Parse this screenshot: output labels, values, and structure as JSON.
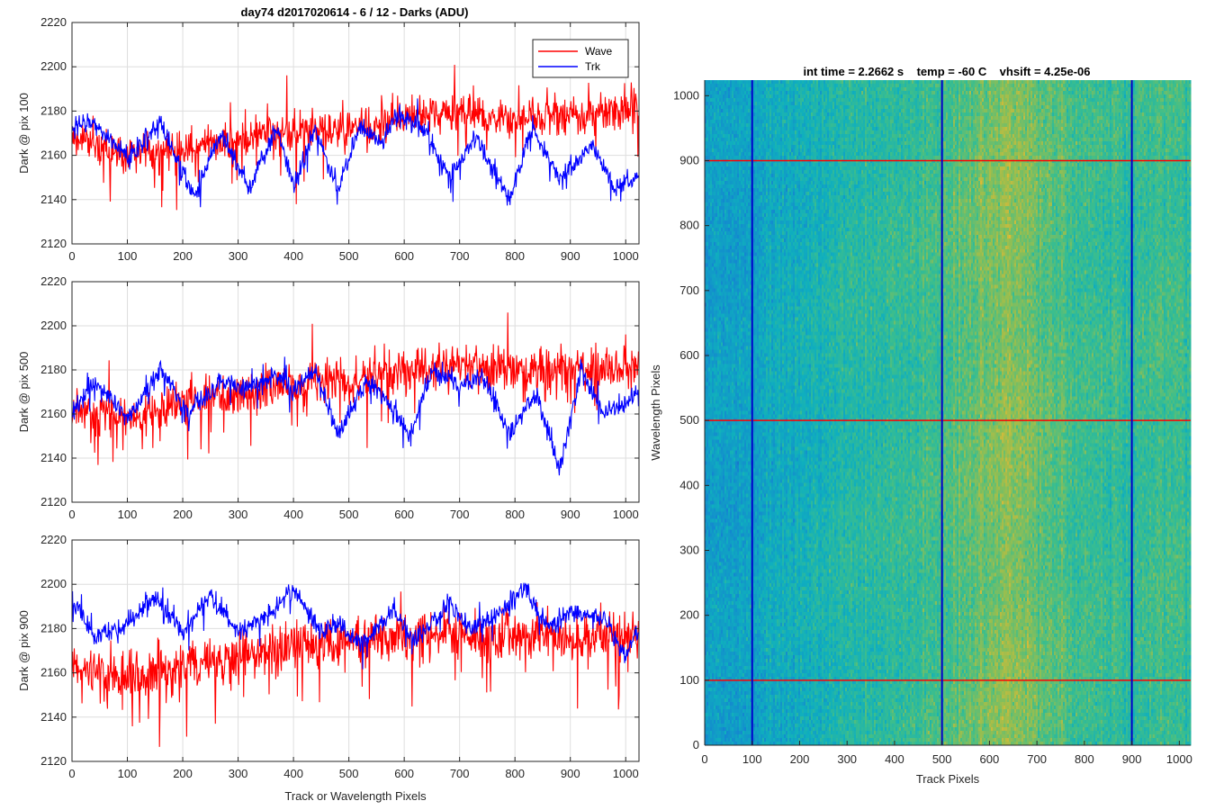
{
  "figure_title": "day74 d2017020614 - 6 / 12 - Darks (ADU)",
  "chart_data": [
    {
      "type": "line",
      "ylabel": "Dark @ pix 100",
      "xlim": [
        0,
        1024
      ],
      "ylim": [
        2120,
        2220
      ],
      "xticks": [
        0,
        100,
        200,
        300,
        400,
        500,
        600,
        700,
        800,
        900,
        1000
      ],
      "yticks": [
        2120,
        2140,
        2160,
        2180,
        2200,
        2220
      ],
      "grid": true,
      "legend": {
        "position": "top-right",
        "entries": [
          "Wave",
          "Trk"
        ]
      },
      "series": [
        {
          "name": "Wave",
          "color": "#ff0000",
          "x": [
            0,
            100,
            200,
            300,
            400,
            500,
            600,
            700,
            800,
            900,
            1000,
            1023
          ],
          "values": [
            2168,
            2160,
            2163,
            2167,
            2170,
            2172,
            2178,
            2180,
            2177,
            2178,
            2180,
            2182
          ],
          "noise": 10
        },
        {
          "name": "Trk",
          "color": "#0000ff",
          "x": [
            0,
            40,
            100,
            160,
            220,
            270,
            320,
            370,
            400,
            440,
            480,
            520,
            560,
            590,
            640,
            680,
            730,
            790,
            830,
            880,
            940,
            980,
            1023
          ],
          "values": [
            2173,
            2175,
            2158,
            2175,
            2142,
            2170,
            2145,
            2172,
            2145,
            2172,
            2145,
            2173,
            2165,
            2180,
            2170,
            2150,
            2168,
            2140,
            2172,
            2150,
            2165,
            2145,
            2150
          ],
          "noise": 5
        }
      ]
    },
    {
      "type": "line",
      "ylabel": "Dark @ pix 500",
      "xlim": [
        0,
        1024
      ],
      "ylim": [
        2120,
        2220
      ],
      "xticks": [
        0,
        100,
        200,
        300,
        400,
        500,
        600,
        700,
        800,
        900,
        1000
      ],
      "yticks": [
        2120,
        2140,
        2160,
        2180,
        2200,
        2220
      ],
      "grid": true,
      "series": [
        {
          "name": "Wave",
          "color": "#ff0000",
          "x": [
            0,
            100,
            200,
            300,
            400,
            500,
            600,
            700,
            800,
            900,
            1000,
            1023
          ],
          "values": [
            2163,
            2158,
            2165,
            2170,
            2173,
            2175,
            2180,
            2182,
            2180,
            2180,
            2182,
            2183
          ],
          "noise": 11
        },
        {
          "name": "Trk",
          "color": "#0000ff",
          "x": [
            0,
            40,
            100,
            160,
            210,
            270,
            320,
            370,
            400,
            440,
            480,
            530,
            560,
            610,
            650,
            700,
            740,
            790,
            840,
            880,
            920,
            960,
            1000,
            1023
          ],
          "values": [
            2160,
            2175,
            2158,
            2180,
            2160,
            2175,
            2172,
            2178,
            2170,
            2180,
            2150,
            2175,
            2170,
            2150,
            2180,
            2172,
            2178,
            2150,
            2170,
            2135,
            2180,
            2160,
            2165,
            2170
          ],
          "noise": 5
        }
      ]
    },
    {
      "type": "line",
      "ylabel": "Dark @ pix 900",
      "xlabel": "Track or Wavelength Pixels",
      "xlim": [
        0,
        1024
      ],
      "ylim": [
        2120,
        2220
      ],
      "xticks": [
        0,
        100,
        200,
        300,
        400,
        500,
        600,
        700,
        800,
        900,
        1000
      ],
      "yticks": [
        2120,
        2140,
        2160,
        2180,
        2200,
        2220
      ],
      "grid": true,
      "series": [
        {
          "name": "Wave",
          "color": "#ff0000",
          "x": [
            0,
            100,
            200,
            300,
            400,
            500,
            600,
            700,
            800,
            900,
            1000,
            1023
          ],
          "values": [
            2160,
            2158,
            2163,
            2168,
            2172,
            2174,
            2177,
            2178,
            2177,
            2176,
            2178,
            2180
          ],
          "noise": 12
        },
        {
          "name": "Trk",
          "color": "#0000ff",
          "x": [
            0,
            40,
            90,
            150,
            200,
            250,
            300,
            350,
            400,
            450,
            480,
            520,
            580,
            620,
            680,
            720,
            760,
            820,
            860,
            900,
            960,
            1000,
            1023
          ],
          "values": [
            2192,
            2178,
            2180,
            2195,
            2178,
            2195,
            2178,
            2185,
            2198,
            2178,
            2183,
            2172,
            2188,
            2175,
            2192,
            2180,
            2185,
            2198,
            2180,
            2187,
            2185,
            2168,
            2178
          ],
          "noise": 5
        }
      ]
    },
    {
      "type": "heatmap",
      "title": "int time = 2.2662 s    temp = -60 C    vhsift = 4.25e-06",
      "xlabel": "Track Pixels",
      "ylabel": "Wavelength Pixels",
      "xlim": [
        0,
        1024
      ],
      "ylim": [
        0,
        1024
      ],
      "xticks": [
        0,
        100,
        200,
        300,
        400,
        500,
        600,
        700,
        800,
        900,
        1000
      ],
      "yticks": [
        0,
        100,
        200,
        300,
        400,
        500,
        600,
        700,
        800,
        900,
        1000
      ],
      "colormap": "parula",
      "column_profile": {
        "x": [
          0,
          50,
          100,
          200,
          300,
          400,
          500,
          550,
          600,
          650,
          700,
          800,
          900,
          950,
          1024
        ],
        "level": [
          0.38,
          0.36,
          0.4,
          0.46,
          0.52,
          0.56,
          0.6,
          0.64,
          0.7,
          0.74,
          0.66,
          0.58,
          0.56,
          0.6,
          0.58
        ]
      },
      "vertical_lines": {
        "color": "#0000cc",
        "x": [
          100,
          500,
          900
        ]
      },
      "horizontal_lines": {
        "color": "#ff0000",
        "y": [
          100,
          500,
          900
        ]
      }
    }
  ]
}
